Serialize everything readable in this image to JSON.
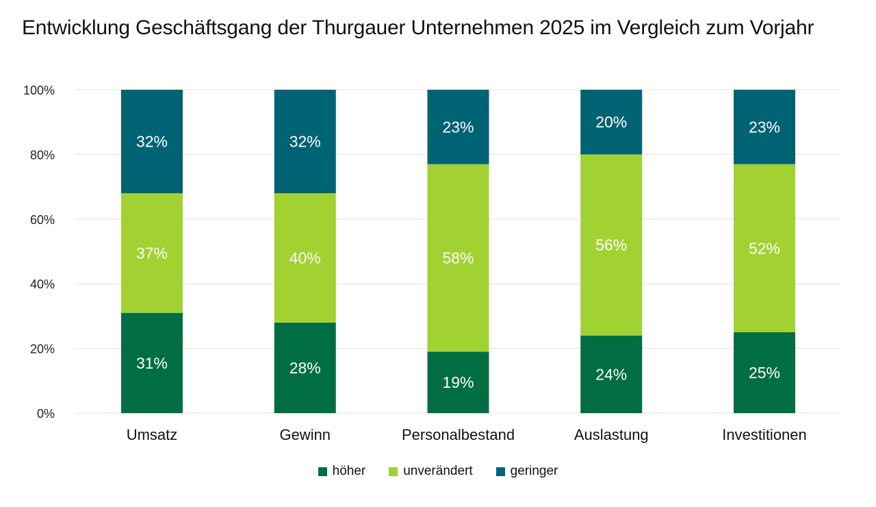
{
  "chart_data": {
    "type": "bar",
    "stacked": true,
    "title": "Entwicklung Geschäftsgang der Thurgauer Unternehmen 2025 im Vergleich zum Vorjahr",
    "xlabel": "",
    "ylabel": "",
    "categories": [
      "Umsatz",
      "Gewinn",
      "Personalbestand",
      "Auslastung",
      "Investitionen"
    ],
    "series": [
      {
        "name": "höher",
        "color": "#006e42",
        "values": [
          31,
          28,
          19,
          24,
          25
        ]
      },
      {
        "name": "unverändert",
        "color": "#a2d132",
        "values": [
          37,
          40,
          58,
          56,
          52
        ]
      },
      {
        "name": "geringer",
        "color": "#006374",
        "values": [
          32,
          32,
          23,
          20,
          23
        ]
      }
    ],
    "ylim": [
      0,
      100
    ],
    "yticks": [
      0,
      20,
      40,
      60,
      80,
      100
    ],
    "ytick_labels": [
      "0%",
      "20%",
      "40%",
      "60%",
      "80%",
      "100%"
    ],
    "data_labels": true,
    "data_label_suffix": "%",
    "grid": true,
    "legend_position": "bottom"
  }
}
